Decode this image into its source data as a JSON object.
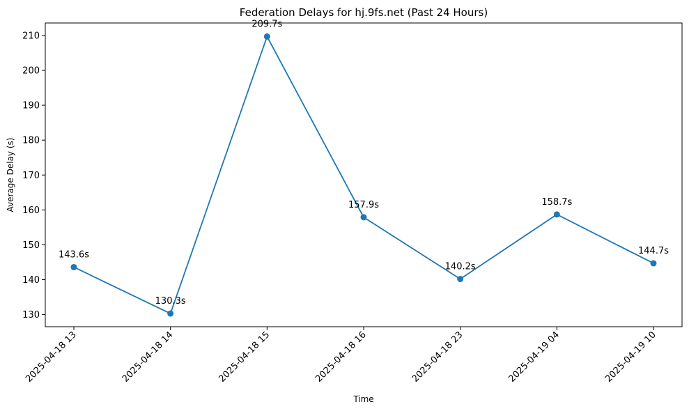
{
  "chart_data": {
    "type": "line",
    "title": "Federation Delays for hj.9fs.net (Past 24 Hours)",
    "xlabel": "Time",
    "ylabel": "Average Delay (s)",
    "categories": [
      "2025-04-18 13",
      "2025-04-18 14",
      "2025-04-18 15",
      "2025-04-18 16",
      "2025-04-18 23",
      "2025-04-19 04",
      "2025-04-19 10"
    ],
    "series": [
      {
        "values": [
          143.6,
          130.3,
          209.7,
          157.9,
          140.2,
          158.7,
          144.7
        ],
        "color": "#1f77b4"
      }
    ],
    "data_labels": [
      "143.6s",
      "130.3s",
      "209.7s",
      "157.9s",
      "140.2s",
      "158.7s",
      "144.7s"
    ],
    "yticks": [
      130,
      140,
      150,
      160,
      170,
      180,
      190,
      200,
      210
    ],
    "grid": false,
    "legend": "none"
  }
}
